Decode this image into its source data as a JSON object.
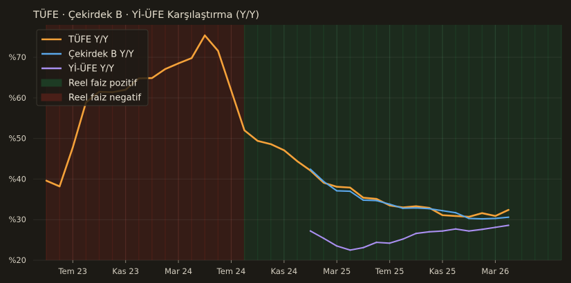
{
  "chart_data": {
    "type": "line",
    "title": "TÜFE · Çekirdek B · Yİ-ÜFE Karşılaştırma (Y/Y)",
    "xlabel": "",
    "ylabel": "",
    "x_unit": "month",
    "xlim": [
      "2023-04",
      "2026-08"
    ],
    "ylim": [
      20,
      78
    ],
    "yticks": [
      20,
      30,
      40,
      50,
      60,
      70
    ],
    "ytick_labels": [
      "%20",
      "%30",
      "%40",
      "%50",
      "%60",
      "%70"
    ],
    "xticks": [
      "2023-07",
      "2023-11",
      "2024-03",
      "2024-07",
      "2024-11",
      "2025-03",
      "2025-07",
      "2025-11",
      "2026-03"
    ],
    "xtick_labels": [
      "Tem 23",
      "Kas 23",
      "Mar 24",
      "Tem 24",
      "Kas 24",
      "Mar 25",
      "Tem 25",
      "Kas 25",
      "Mar 26"
    ],
    "grid": true,
    "legend_position": "top-left",
    "background_color": "#1c1a15",
    "regions": [
      {
        "name": "Reel faiz negatif",
        "start": "2023-05",
        "end": "2024-08",
        "color": "#4a1f18"
      },
      {
        "name": "Reel faiz pozitif",
        "start": "2024-08",
        "end": "2026-08",
        "color": "#1d3b24"
      }
    ],
    "series": [
      {
        "name": "TÜFE Y/Y",
        "color": "#f5a23a",
        "x": [
          "2023-05",
          "2023-06",
          "2023-07",
          "2023-08",
          "2023-09",
          "2023-10",
          "2023-11",
          "2023-12",
          "2024-01",
          "2024-02",
          "2024-03",
          "2024-04",
          "2024-05",
          "2024-06",
          "2024-07",
          "2024-08",
          "2024-09",
          "2024-10",
          "2024-11",
          "2024-12",
          "2025-01",
          "2025-02",
          "2025-03",
          "2025-04",
          "2025-05",
          "2025-06",
          "2025-07",
          "2025-08",
          "2025-09",
          "2025-10",
          "2025-11",
          "2025-12",
          "2026-01",
          "2026-02",
          "2026-03",
          "2026-04"
        ],
        "values": [
          39.6,
          38.2,
          47.8,
          58.9,
          61.5,
          61.4,
          62.0,
          64.8,
          64.9,
          67.1,
          68.5,
          69.8,
          75.4,
          71.6,
          61.8,
          52.0,
          49.4,
          48.6,
          47.1,
          44.4,
          42.1,
          39.1,
          38.1,
          37.9,
          35.4,
          35.1,
          33.5,
          33.0,
          33.3,
          32.9,
          31.1,
          30.9,
          30.7,
          31.6,
          30.9,
          32.4
        ]
      },
      {
        "name": "Çekirdek B Y/Y",
        "color": "#5ba7ea",
        "x": [
          "2025-01",
          "2025-02",
          "2025-03",
          "2025-04",
          "2025-05",
          "2025-06",
          "2025-07",
          "2025-08",
          "2025-09",
          "2025-10",
          "2025-11",
          "2025-12",
          "2026-01",
          "2026-02",
          "2026-03",
          "2026-04"
        ],
        "values": [
          42.4,
          39.4,
          37.1,
          37.0,
          34.8,
          34.7,
          33.8,
          32.8,
          32.9,
          32.7,
          32.2,
          31.7,
          30.3,
          30.2,
          30.3,
          30.6
        ]
      },
      {
        "name": "Yİ-ÜFE Y/Y",
        "color": "#a98ff0",
        "x": [
          "2025-01",
          "2025-02",
          "2025-03",
          "2025-04",
          "2025-05",
          "2025-06",
          "2025-07",
          "2025-08",
          "2025-09",
          "2025-10",
          "2025-11",
          "2025-12",
          "2026-01",
          "2026-02",
          "2026-03",
          "2026-04"
        ],
        "values": [
          27.2,
          25.4,
          23.5,
          22.5,
          23.1,
          24.4,
          24.2,
          25.2,
          26.6,
          27.0,
          27.2,
          27.7,
          27.2,
          27.6,
          28.1,
          28.6
        ]
      }
    ]
  }
}
